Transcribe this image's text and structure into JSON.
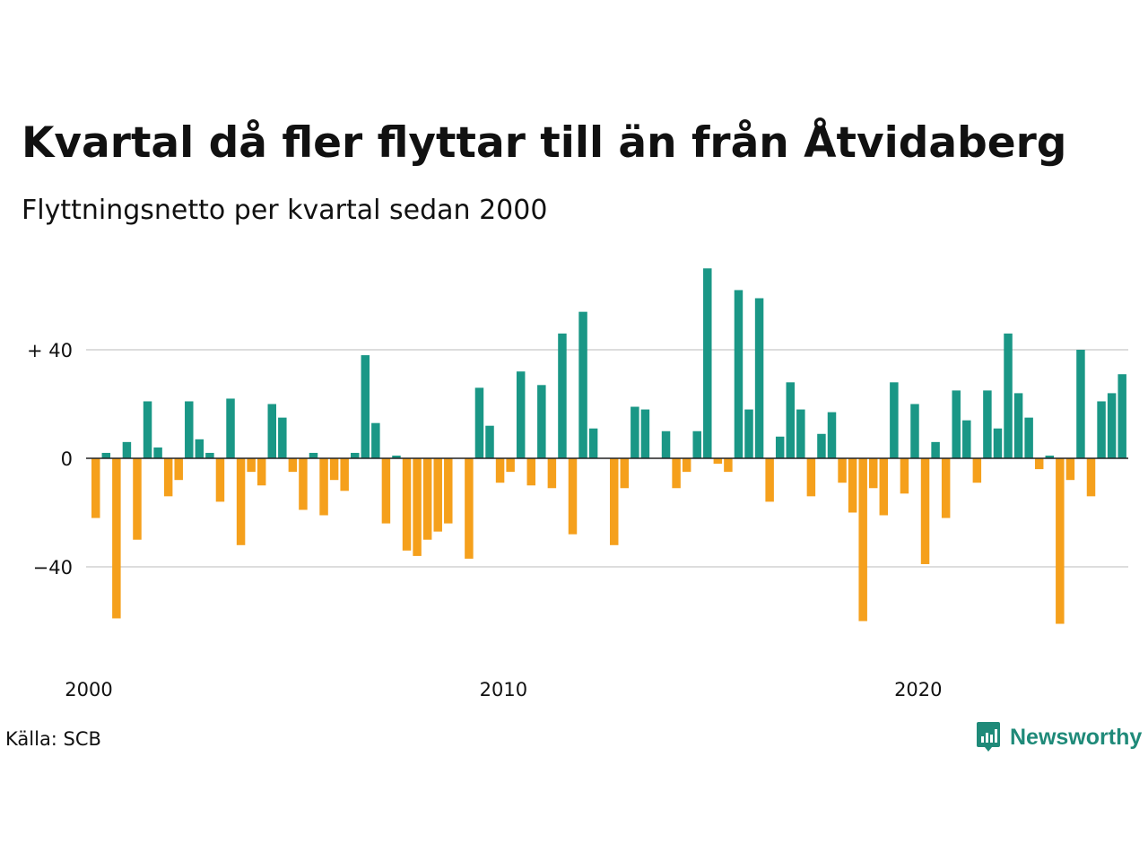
{
  "title": "Kvartal då fler flyttar till än från Åtvidaberg",
  "subtitle": "Flyttningsnetto per kvartal sedan 2000",
  "source": "Källa: SCB",
  "brand": {
    "name": "Newsworthy",
    "icon": "newsworthy-logo-icon"
  },
  "colors": {
    "positive": "#1a9786",
    "negative": "#f5a01c",
    "grid": "#dddddd",
    "zero_line": "#222222",
    "brand": "#1f8a79"
  },
  "chart_data": {
    "type": "bar",
    "title": "Kvartal då fler flyttar till än från Åtvidaberg",
    "subtitle": "Flyttningsnetto per kvartal sedan 2000",
    "x_start": "2000 Q1",
    "x_end": "2024 Q4",
    "ylim": [
      -63,
      70
    ],
    "y_ticks": [
      40,
      0,
      -40
    ],
    "y_tick_labels": [
      "+ 40",
      "0",
      "−40"
    ],
    "x_tick_labels": [
      "2000",
      "2010",
      "2020"
    ],
    "x_tick_years": [
      2000,
      2010,
      2020
    ],
    "grid": true,
    "legend": "none",
    "source": "Källa: SCB",
    "series": [
      {
        "values": [
          -22,
          2,
          -59,
          6,
          -30,
          21,
          4,
          -14,
          -8,
          21,
          7,
          2,
          -16,
          22,
          -32,
          -5,
          -10,
          20,
          15,
          -5,
          -19,
          2,
          -21,
          -8,
          -12,
          2,
          38,
          13,
          -24,
          1,
          -34,
          -36,
          -30,
          -27,
          -24,
          0,
          -37,
          26,
          12,
          -9,
          -5,
          32,
          -10,
          27,
          -11,
          46,
          -28,
          54,
          11,
          0,
          -32,
          -11,
          19,
          18,
          0,
          10,
          -11,
          -5,
          10,
          70,
          -2,
          -5,
          62,
          18,
          59,
          -16,
          8,
          28,
          18,
          -14,
          9,
          17,
          -9,
          -20,
          -60,
          -11,
          -21,
          28,
          -13,
          20,
          -39,
          6,
          -22,
          25,
          14,
          -9,
          25,
          11,
          46,
          24,
          15,
          -4,
          1,
          -61,
          -8,
          40,
          -14,
          21,
          24,
          31
        ]
      }
    ]
  }
}
